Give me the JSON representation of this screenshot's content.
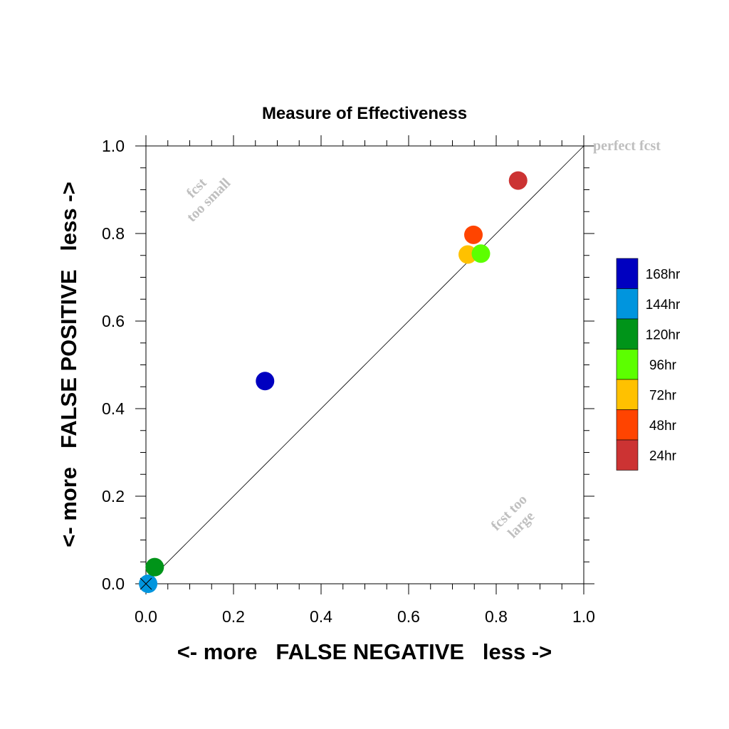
{
  "chart_data": {
    "type": "scatter",
    "title": "Measure of Effectiveness",
    "xlabel": "<- more   FALSE NEGATIVE   less ->",
    "ylabel": "<- more   FALSE POSITIVE   less ->",
    "xlim": [
      0.0,
      1.0
    ],
    "ylim": [
      0.0,
      1.0
    ],
    "x_ticks": [
      "0.0",
      "0.2",
      "0.4",
      "0.6",
      "0.8",
      "1.0"
    ],
    "y_ticks": [
      "0.0",
      "0.2",
      "0.4",
      "0.6",
      "0.8",
      "1.0"
    ],
    "grid": false,
    "legend_position": "right",
    "reference_line": {
      "from": [
        0,
        0
      ],
      "to": [
        1,
        1
      ]
    },
    "origin_marker": "x",
    "annotations": [
      {
        "name": "annotation-perfect-fcst",
        "lines": [
          "perfect fcst"
        ]
      },
      {
        "name": "annotation-fcst-too-small",
        "lines": [
          "fcst",
          "too small"
        ]
      },
      {
        "name": "annotation-fcst-too-large",
        "lines": [
          "fcst too",
          "large"
        ]
      }
    ],
    "series": [
      {
        "name": "168hr",
        "color": "#0000c0",
        "x": 0.272,
        "y": 0.463
      },
      {
        "name": "144hr",
        "color": "#0095de",
        "x": 0.005,
        "y": 0.0
      },
      {
        "name": "120hr",
        "color": "#009419",
        "x": 0.02,
        "y": 0.038
      },
      {
        "name": "96hr",
        "color": "#5cff00",
        "x": 0.765,
        "y": 0.754
      },
      {
        "name": "72hr",
        "color": "#ffc100",
        "x": 0.735,
        "y": 0.752
      },
      {
        "name": "48hr",
        "color": "#ff4400",
        "x": 0.748,
        "y": 0.797
      },
      {
        "name": "24hr",
        "color": "#cc3333",
        "x": 0.85,
        "y": 0.921
      }
    ]
  }
}
